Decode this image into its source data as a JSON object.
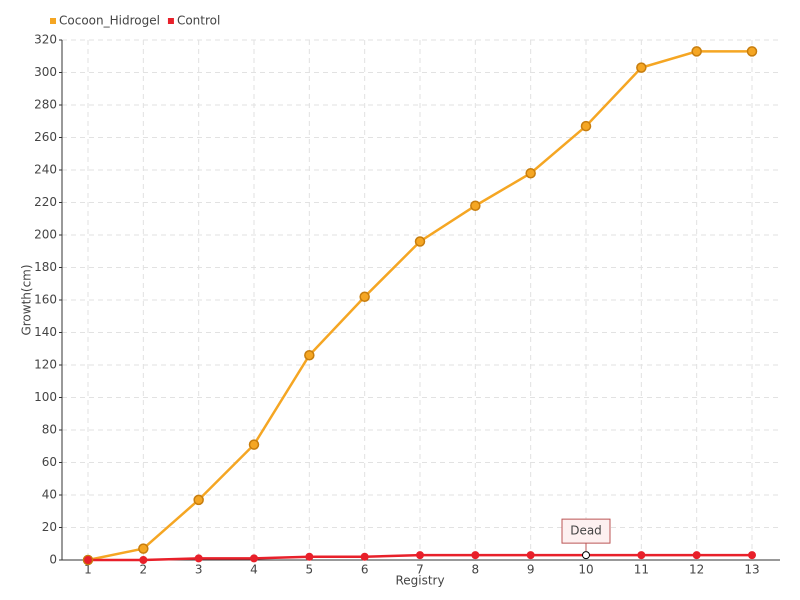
{
  "chart_data": {
    "type": "line",
    "x_label": "Registry",
    "y_label": "Growth(cm)",
    "categories": [
      "1",
      "2",
      "3",
      "4",
      "5",
      "6",
      "7",
      "8",
      "9",
      "10",
      "11",
      "12",
      "13"
    ],
    "series": [
      {
        "name": "Cocoon_Hidrogel",
        "color": "#f5a623",
        "values": [
          0,
          7,
          37,
          71,
          126,
          162,
          196,
          218,
          238,
          267,
          303,
          313,
          313
        ]
      },
      {
        "name": "Control",
        "color": "#e8202a",
        "values": [
          0,
          0,
          1,
          1,
          2,
          2,
          3,
          3,
          3,
          3,
          3,
          3,
          3
        ]
      }
    ],
    "annotation": {
      "text": "Dead",
      "series": "Control",
      "x": "10"
    },
    "ylim": [
      0,
      320
    ],
    "yticks": [
      0,
      20,
      40,
      60,
      80,
      100,
      120,
      140,
      160,
      180,
      200,
      220,
      240,
      260,
      280,
      300,
      320
    ],
    "grid": true,
    "legend": "top-left"
  }
}
